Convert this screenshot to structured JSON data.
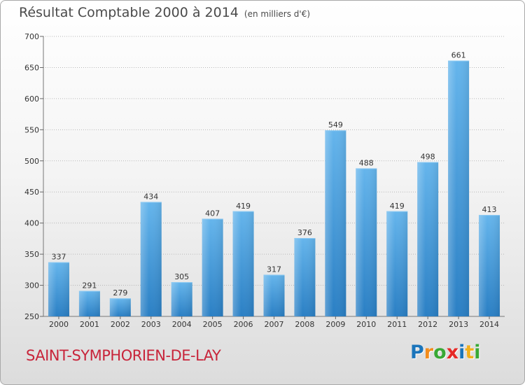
{
  "header": {
    "title": "Résultat Comptable 2000 à 2014",
    "subtitle": "(en milliers d'€)"
  },
  "footer": {
    "commune": "SAINT-SYMPHORIEN-DE-LAY",
    "logo_letters": [
      "P",
      "r",
      "o",
      "x",
      "i",
      "t",
      "i"
    ],
    "logo_colors": [
      "#1b75bb",
      "#f28c1c",
      "#39a935",
      "#e62a27",
      "#1b75bb",
      "#f2b01c",
      "#39a935"
    ]
  },
  "colors": {
    "bar_top": "#65b5ec",
    "bar_bottom": "#2a7fc4",
    "commune": "#c8243a"
  },
  "chart_data": {
    "type": "bar",
    "title": "Résultat Comptable 2000 à 2014",
    "subtitle": "(en milliers d'€)",
    "categories": [
      "2000",
      "2001",
      "2002",
      "2003",
      "2004",
      "2005",
      "2006",
      "2007",
      "2008",
      "2009",
      "2010",
      "2011",
      "2012",
      "2013",
      "2014"
    ],
    "values": [
      337,
      291,
      279,
      434,
      305,
      407,
      419,
      317,
      376,
      549,
      488,
      419,
      498,
      661,
      413
    ],
    "ylim": [
      250,
      700
    ],
    "yticks": [
      250,
      300,
      350,
      400,
      450,
      500,
      550,
      600,
      650,
      700
    ],
    "grid": true
  }
}
